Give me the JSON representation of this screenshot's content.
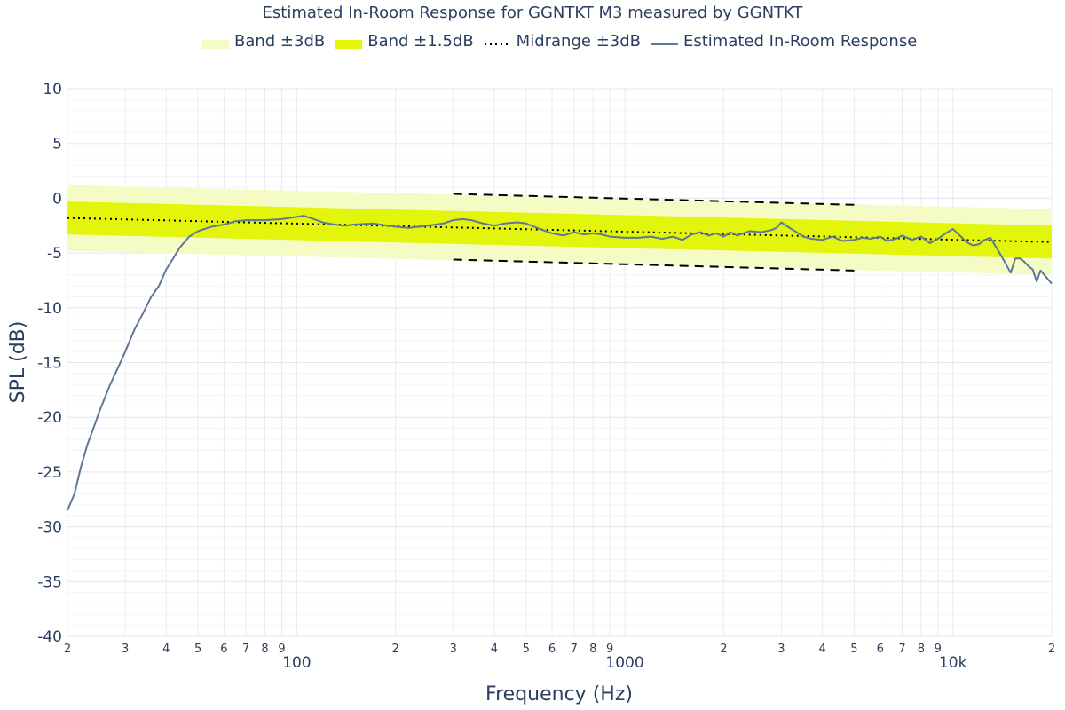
{
  "chart_data": {
    "type": "line",
    "title": "Estimated In-Room Response for GGNTKT M3 measured by GGNTKT",
    "xlabel": "Frequency (Hz)",
    "ylabel": "SPL (dB)",
    "x_scale": "log",
    "xlim": [
      20,
      20000
    ],
    "ylim": [
      -40,
      10
    ],
    "grid": true,
    "legend_position": "top",
    "y_ticks": [
      "10",
      "5",
      "0",
      "-5",
      "-10",
      "-15",
      "-20",
      "-25",
      "-30",
      "-35",
      "-40"
    ],
    "x_major_ticks": [
      {
        "value": 100,
        "label": "100"
      },
      {
        "value": 1000,
        "label": "1000"
      },
      {
        "value": 10000,
        "label": "10k"
      }
    ],
    "x_minor_ticks": [
      {
        "value": 20,
        "label": "2"
      },
      {
        "value": 30,
        "label": "3"
      },
      {
        "value": 40,
        "label": "4"
      },
      {
        "value": 50,
        "label": "5"
      },
      {
        "value": 60,
        "label": "6"
      },
      {
        "value": 70,
        "label": "7"
      },
      {
        "value": 80,
        "label": "8"
      },
      {
        "value": 90,
        "label": "9"
      },
      {
        "value": 200,
        "label": "2"
      },
      {
        "value": 300,
        "label": "3"
      },
      {
        "value": 400,
        "label": "4"
      },
      {
        "value": 500,
        "label": "5"
      },
      {
        "value": 600,
        "label": "6"
      },
      {
        "value": 700,
        "label": "7"
      },
      {
        "value": 800,
        "label": "8"
      },
      {
        "value": 900,
        "label": "9"
      },
      {
        "value": 2000,
        "label": "2"
      },
      {
        "value": 3000,
        "label": "3"
      },
      {
        "value": 4000,
        "label": "4"
      },
      {
        "value": 5000,
        "label": "5"
      },
      {
        "value": 6000,
        "label": "6"
      },
      {
        "value": 7000,
        "label": "7"
      },
      {
        "value": 8000,
        "label": "8"
      },
      {
        "value": 9000,
        "label": "9"
      },
      {
        "value": 20000,
        "label": "2"
      }
    ],
    "series": [
      {
        "name": "Band ±3dB",
        "style": "band",
        "color": "#f4fbc5",
        "x": [
          20,
          20000
        ],
        "upper": [
          1.2,
          -1.0
        ],
        "lower": [
          -4.8,
          -7.0
        ]
      },
      {
        "name": "Band ±1.5dB",
        "style": "band",
        "color": "#e2f50a",
        "x": [
          20,
          20000
        ],
        "upper": [
          -0.3,
          -2.5
        ],
        "lower": [
          -3.3,
          -5.5
        ]
      },
      {
        "name": "Midrange ±3dB",
        "style": "dotted",
        "color": "#000000",
        "x": [
          20,
          20000
        ],
        "y": [
          -1.8,
          -4.0
        ],
        "upper_dashed": {
          "x": [
            300,
            5000
          ],
          "y": [
            0.4,
            -0.6
          ]
        },
        "lower_dashed": {
          "x": [
            300,
            5000
          ],
          "y": [
            -5.6,
            -6.6
          ]
        }
      },
      {
        "name": "Estimated In-Room Response",
        "style": "line",
        "color": "#5f7897",
        "x": [
          20,
          21,
          22,
          23,
          24,
          25,
          27,
          29,
          30,
          32,
          34,
          36,
          38,
          40,
          42,
          44,
          47,
          50,
          55,
          60,
          65,
          70,
          80,
          90,
          100,
          105,
          110,
          120,
          130,
          140,
          150,
          170,
          190,
          200,
          220,
          250,
          280,
          300,
          320,
          340,
          370,
          400,
          430,
          470,
          500,
          550,
          600,
          650,
          700,
          750,
          800,
          850,
          900,
          1000,
          1100,
          1200,
          1300,
          1400,
          1500,
          1600,
          1700,
          1800,
          1900,
          2000,
          2100,
          2200,
          2400,
          2600,
          2800,
          2900,
          3000,
          3100,
          3300,
          3500,
          3700,
          4000,
          4300,
          4600,
          5000,
          5300,
          5600,
          6000,
          6300,
          6700,
          7000,
          7500,
          8000,
          8500,
          9000,
          9500,
          10000,
          10500,
          11000,
          11500,
          12000,
          12500,
          13000,
          13500,
          14000,
          14500,
          15000,
          15500,
          16000,
          16500,
          17000,
          17500,
          18000,
          18500,
          19000,
          20000
        ],
        "y": [
          -28.5,
          -27.0,
          -24.5,
          -22.5,
          -21.0,
          -19.5,
          -17.0,
          -15.0,
          -14.0,
          -12.0,
          -10.5,
          -9.0,
          -8.0,
          -6.5,
          -5.5,
          -4.5,
          -3.5,
          -3.0,
          -2.6,
          -2.4,
          -2.1,
          -2.0,
          -2.0,
          -1.9,
          -1.7,
          -1.6,
          -1.8,
          -2.2,
          -2.4,
          -2.5,
          -2.4,
          -2.3,
          -2.5,
          -2.6,
          -2.7,
          -2.5,
          -2.3,
          -2.0,
          -1.9,
          -2.0,
          -2.3,
          -2.5,
          -2.3,
          -2.2,
          -2.3,
          -2.8,
          -3.2,
          -3.4,
          -3.1,
          -3.3,
          -3.2,
          -3.3,
          -3.5,
          -3.6,
          -3.6,
          -3.5,
          -3.7,
          -3.5,
          -3.8,
          -3.3,
          -3.1,
          -3.4,
          -3.2,
          -3.5,
          -3.1,
          -3.4,
          -3.0,
          -3.1,
          -2.9,
          -2.7,
          -2.2,
          -2.5,
          -3.0,
          -3.5,
          -3.7,
          -3.8,
          -3.5,
          -3.9,
          -3.8,
          -3.6,
          -3.7,
          -3.5,
          -3.9,
          -3.7,
          -3.4,
          -3.8,
          -3.5,
          -4.1,
          -3.7,
          -3.2,
          -2.8,
          -3.4,
          -4.0,
          -4.3,
          -4.2,
          -3.8,
          -3.6,
          -4.4,
          -5.2,
          -6.0,
          -6.8,
          -5.5,
          -5.5,
          -5.8,
          -6.2,
          -6.5,
          -7.6,
          -6.6,
          -7.0,
          -7.8
        ]
      }
    ]
  },
  "legend": [
    {
      "name": "Band ±3dB",
      "style": "band",
      "color": "#f4fbc5"
    },
    {
      "name": "Band ±1.5dB",
      "style": "band",
      "color": "#e2f50a"
    },
    {
      "name": "Midrange ±3dB",
      "style": "dotted",
      "color": "#000000"
    },
    {
      "name": "Estimated In-Room Response",
      "style": "line",
      "color": "#5f7897"
    }
  ]
}
